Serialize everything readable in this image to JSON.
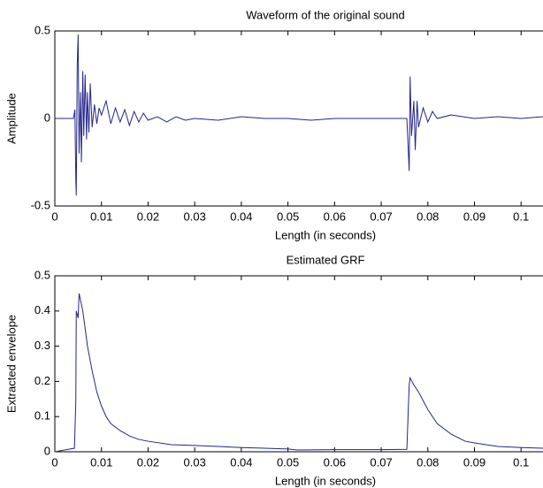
{
  "chart_data": [
    {
      "type": "line",
      "title": "Waveform of the original sound",
      "xlabel": "Length (in seconds)",
      "ylabel": "Amplitude",
      "x": [
        0,
        0.004,
        0.0043,
        0.0045,
        0.0046,
        0.0048,
        0.005,
        0.0052,
        0.0055,
        0.0057,
        0.006,
        0.0062,
        0.0065,
        0.0068,
        0.007,
        0.0073,
        0.0076,
        0.008,
        0.0085,
        0.009,
        0.0095,
        0.01,
        0.011,
        0.012,
        0.013,
        0.014,
        0.015,
        0.016,
        0.017,
        0.018,
        0.019,
        0.02,
        0.022,
        0.024,
        0.026,
        0.028,
        0.03,
        0.035,
        0.04,
        0.045,
        0.05,
        0.055,
        0.06,
        0.065,
        0.07,
        0.074,
        0.0755,
        0.076,
        0.0762,
        0.0765,
        0.077,
        0.0773,
        0.0777,
        0.078,
        0.079,
        0.08,
        0.081,
        0.082,
        0.085,
        0.09,
        0.095,
        0.1,
        0.1047
      ],
      "values": [
        0,
        0,
        0.05,
        -0.35,
        -0.44,
        0.3,
        0.48,
        -0.2,
        0.15,
        -0.25,
        0.27,
        -0.1,
        0.25,
        -0.12,
        0.15,
        -0.08,
        0.2,
        -0.05,
        0.08,
        -0.03,
        0.06,
        0.02,
        0.1,
        -0.03,
        0.06,
        -0.02,
        0.05,
        -0.04,
        0.04,
        -0.02,
        0.03,
        -0.01,
        0.01,
        -0.02,
        0.01,
        -0.01,
        0,
        -0.01,
        0.01,
        0,
        0,
        -0.01,
        0,
        0,
        0,
        0,
        0,
        -0.3,
        0.24,
        -0.1,
        0.1,
        -0.18,
        0.1,
        -0.05,
        0.06,
        -0.02,
        0.04,
        0,
        0.02,
        0,
        0.01,
        0,
        0.01
      ],
      "color": "#24248c",
      "xlim": [
        0,
        0.1047
      ],
      "xticks": [
        0,
        0.01,
        0.02,
        0.03,
        0.04,
        0.05,
        0.06,
        0.07,
        0.08,
        0.09,
        0.1
      ],
      "ylim": [
        -0.5,
        0.5
      ],
      "yticks": [
        -0.5,
        0,
        0.5
      ]
    },
    {
      "type": "line",
      "title": "Estimated GRF",
      "xlabel": "Length (in seconds)",
      "ylabel": "Extracted envelope",
      "x": [
        0,
        0.0042,
        0.0045,
        0.0046,
        0.0048,
        0.005,
        0.0052,
        0.006,
        0.007,
        0.008,
        0.009,
        0.01,
        0.011,
        0.012,
        0.014,
        0.016,
        0.018,
        0.02,
        0.025,
        0.03,
        0.035,
        0.04,
        0.045,
        0.05,
        0.052,
        0.06,
        0.07,
        0.0755,
        0.076,
        0.0762,
        0.077,
        0.078,
        0.08,
        0.082,
        0.085,
        0.088,
        0.09,
        0.095,
        0.1,
        0.1047
      ],
      "values": [
        0,
        0.01,
        0.14,
        0.4,
        0.39,
        0.38,
        0.45,
        0.4,
        0.3,
        0.23,
        0.17,
        0.13,
        0.1,
        0.08,
        0.06,
        0.045,
        0.035,
        0.03,
        0.02,
        0.018,
        0.015,
        0.012,
        0.01,
        0.008,
        0.005,
        0.006,
        0.006,
        0.007,
        0.19,
        0.21,
        0.19,
        0.17,
        0.12,
        0.08,
        0.05,
        0.03,
        0.025,
        0.015,
        0.012,
        0.01
      ],
      "color": "#24248c",
      "xlim": [
        0,
        0.1047
      ],
      "xticks": [
        0,
        0.01,
        0.02,
        0.03,
        0.04,
        0.05,
        0.06,
        0.07,
        0.08,
        0.09,
        0.1
      ],
      "ylim": [
        0,
        0.5
      ],
      "yticks": [
        0,
        0.1,
        0.2,
        0.3,
        0.4,
        0.5
      ]
    }
  ]
}
